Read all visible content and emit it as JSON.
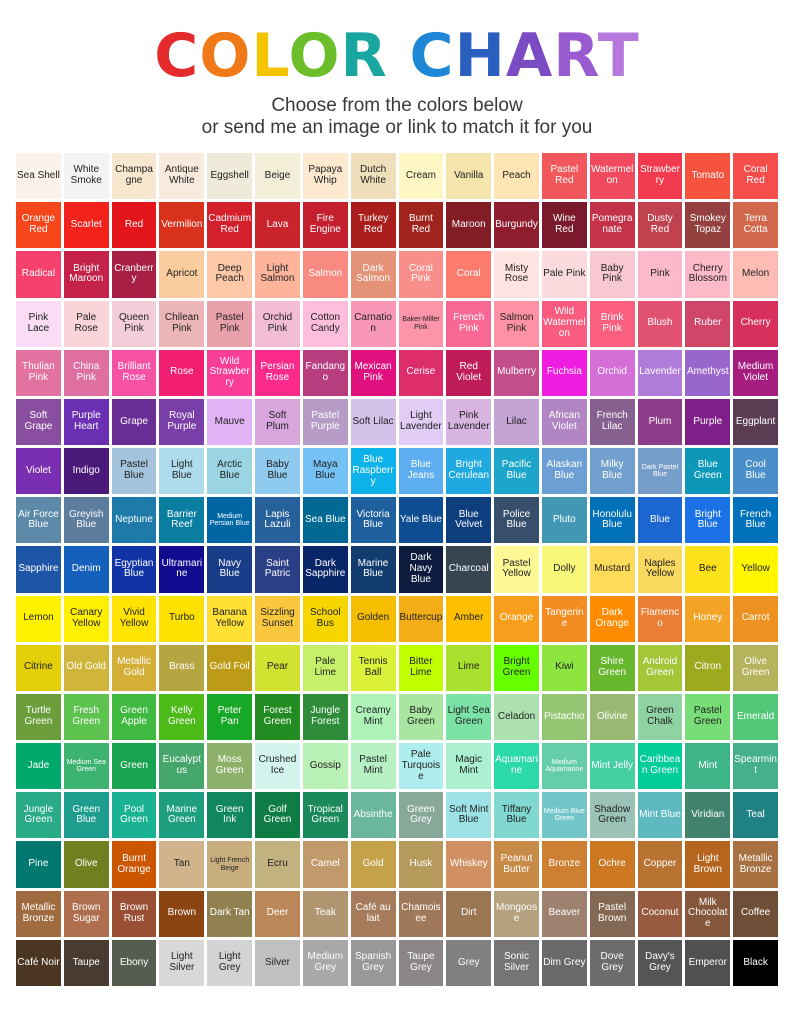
{
  "title": {
    "letters": [
      {
        "ch": "C",
        "color": "#e42b2b"
      },
      {
        "ch": "O",
        "color": "#f07a1a"
      },
      {
        "ch": "L",
        "color": "#f5c400"
      },
      {
        "ch": "O",
        "color": "#6cbf2b"
      },
      {
        "ch": "R",
        "color": "#1aa6a0"
      },
      {
        "ch": " ",
        "color": "#ffffff"
      },
      {
        "ch": "C",
        "color": "#1e88d6"
      },
      {
        "ch": "H",
        "color": "#2a5fbf"
      },
      {
        "ch": "A",
        "color": "#7a4bc2"
      },
      {
        "ch": "R",
        "color": "#9b5bd0"
      },
      {
        "ch": "T",
        "color": "#b678dd"
      }
    ]
  },
  "subtitle": {
    "line1": "Choose from the colors below",
    "line2": "or send me an image or link to match it for you"
  },
  "rows": [
    [
      [
        "Sea Shell",
        "#fbf3ea"
      ],
      [
        "White Smoke",
        "#f3f3f3"
      ],
      [
        "Champagne",
        "#f7e7ce"
      ],
      [
        "Antique White",
        "#f8eadc"
      ],
      [
        "Eggshell",
        "#f0eadb"
      ],
      [
        "Beige",
        "#f4efd9"
      ],
      [
        "Papaya Whip",
        "#fde9cf"
      ],
      [
        "Dutch White",
        "#efdfbb"
      ],
      [
        "Cream",
        "#fff8c4"
      ],
      [
        "Vanilla",
        "#f3e5ab"
      ],
      [
        "Peach",
        "#ffe5b4"
      ],
      [
        "Pastel Red",
        "#f1575b"
      ],
      [
        "Watermelon",
        "#f14a5f"
      ],
      [
        "Strawberry",
        "#f23a4e"
      ],
      [
        "Tomato",
        "#f6533f"
      ],
      [
        "Coral Red",
        "#f54c4c"
      ]
    ],
    [
      [
        "Orange Red",
        "#f6461c"
      ],
      [
        "Scarlet",
        "#f2221b"
      ],
      [
        "Red",
        "#e3151a"
      ],
      [
        "Vermilion",
        "#d9321c"
      ],
      [
        "Cadmium Red",
        "#d41f2c"
      ],
      [
        "Lava",
        "#c9232b"
      ],
      [
        "Fire Engine",
        "#c5202d"
      ],
      [
        "Turkey Red",
        "#a91d1d"
      ],
      [
        "Burnt Red",
        "#a0241d"
      ],
      [
        "Maroon",
        "#821d25"
      ],
      [
        "Burgundy",
        "#8e1d2d"
      ],
      [
        "Wine Red",
        "#7a1a2c"
      ],
      [
        "Pomegranate",
        "#c43349"
      ],
      [
        "Dusty Red",
        "#c0424f"
      ],
      [
        "Smokey Topaz",
        "#93403e"
      ],
      [
        "Terra Cotta",
        "#d2694d"
      ]
    ],
    [
      [
        "Radical",
        "#f5416c"
      ],
      [
        "Bright Maroon",
        "#c42249"
      ],
      [
        "Cranberry",
        "#a71f45"
      ],
      [
        "Apricot",
        "#fbcd9e"
      ],
      [
        "Deep Peach",
        "#fcc8a7"
      ],
      [
        "Light Salmon",
        "#fdb49b"
      ],
      [
        "Salmon",
        "#f98a82"
      ],
      [
        "Dark Salmon",
        "#e59378"
      ],
      [
        "Coral Pink",
        "#f98f8a"
      ],
      [
        "Coral",
        "#fb7b6d"
      ],
      [
        "Misty Rose",
        "#ffe4e1"
      ],
      [
        "Pale Pink",
        "#fadadd"
      ],
      [
        "Baby Pink",
        "#f8c8d2"
      ],
      [
        "Pink",
        "#fbb9cb"
      ],
      [
        "Cherry Blossom",
        "#fcb9c8"
      ],
      [
        "Melon",
        "#fdbcb4"
      ]
    ],
    [
      [
        "Pink Lace",
        "#fcdcf4"
      ],
      [
        "Pale Rose",
        "#f9d5da"
      ],
      [
        "Queen Pink",
        "#f3cdd8"
      ],
      [
        "Chilean Pink",
        "#ecb6b8"
      ],
      [
        "Pastel Pink",
        "#e8a0aa"
      ],
      [
        "Orchid Pink",
        "#f1bcd4"
      ],
      [
        "Cotton Candy",
        "#fdbedc"
      ],
      [
        "Carnation",
        "#f898b6"
      ],
      [
        "Baker-Miller Pink",
        "#fc95a9"
      ],
      [
        "French Pink",
        "#f86894"
      ],
      [
        "Salmon Pink",
        "#ff91a4"
      ],
      [
        "Wild Watermelon",
        "#f95c7f"
      ],
      [
        "Brink Pink",
        "#fa5f80"
      ],
      [
        "Blush",
        "#e0526f"
      ],
      [
        "Ruber",
        "#cf4669"
      ],
      [
        "Cherry",
        "#d8305d"
      ]
    ],
    [
      [
        "Thulian Pink",
        "#e2729f"
      ],
      [
        "China Pink",
        "#df6fa1"
      ],
      [
        "Brilliant Rose",
        "#f552a3"
      ],
      [
        "Rose",
        "#f21e72"
      ],
      [
        "Wild Strawberry",
        "#fa3d96"
      ],
      [
        "Persian Rose",
        "#fb2a8b"
      ],
      [
        "Fandango",
        "#b83d7f"
      ],
      [
        "Mexican Pink",
        "#e0117f"
      ],
      [
        "Cerise",
        "#dd2d6a"
      ],
      [
        "Red Violet",
        "#c01c5a"
      ],
      [
        "Mulberry",
        "#c24e8b"
      ],
      [
        "Fuchsia",
        "#ef1ddf"
      ],
      [
        "Orchid",
        "#d46fd8"
      ],
      [
        "Lavender",
        "#b17cd9"
      ],
      [
        "Amethyst",
        "#9966cc"
      ],
      [
        "Medium Violet",
        "#a61d7f"
      ]
    ],
    [
      [
        "Soft Grape",
        "#8a4ea0"
      ],
      [
        "Purple Heart",
        "#6a2fb2"
      ],
      [
        "Grape",
        "#6a2d96"
      ],
      [
        "Royal Purple",
        "#7a3ea8"
      ],
      [
        "Mauve",
        "#e1b3f4"
      ],
      [
        "Soft Plum",
        "#d8a6dd"
      ],
      [
        "Pastel Purple",
        "#b59bc6"
      ],
      [
        "Soft Lilac",
        "#d5c2ea"
      ],
      [
        "Light Lavender",
        "#e0ccf5"
      ],
      [
        "Pink Lavender",
        "#d8b4e0"
      ],
      [
        "Lilac",
        "#c3a3d4"
      ],
      [
        "African Violet",
        "#b085c2"
      ],
      [
        "French Lilac",
        "#86608e"
      ],
      [
        "Plum",
        "#8c3c88"
      ],
      [
        "Purple",
        "#7e2088"
      ],
      [
        "Eggplant",
        "#5b3c52"
      ]
    ],
    [
      [
        "Violet",
        "#7a2fb2"
      ],
      [
        "Indigo",
        "#4a1a7a"
      ],
      [
        "Pastel Blue",
        "#a3c4dc"
      ],
      [
        "Light Blue",
        "#aedced"
      ],
      [
        "Arctic Blue",
        "#9bd5e3"
      ],
      [
        "Baby Blue",
        "#8ecbef"
      ],
      [
        "Maya Blue",
        "#73c1f5"
      ],
      [
        "Blue Raspberry",
        "#0db2ea"
      ],
      [
        "Blue Jeans",
        "#5daef0"
      ],
      [
        "Bright Cerulean",
        "#1fa9e0"
      ],
      [
        "Pacific Blue",
        "#1ca6cc"
      ],
      [
        "Alaskan Blue",
        "#6c9fd4"
      ],
      [
        "Milky Blue",
        "#71a0cf"
      ],
      [
        "Dark Pastel Blue",
        "#779ecb"
      ],
      [
        "Blue Green",
        "#0d98ba"
      ],
      [
        "Cool Blue",
        "#4a8fc9"
      ]
    ],
    [
      [
        "Air Force Blue",
        "#5d8aa8"
      ],
      [
        "Greyish Blue",
        "#5c7d9e"
      ],
      [
        "Neptune",
        "#1e7aa8"
      ],
      [
        "Barrier Reef",
        "#0a7ea1"
      ],
      [
        "Medium Persian Blue",
        "#0067a5"
      ],
      [
        "Lapis Lazuli",
        "#26619c"
      ],
      [
        "Sea Blue",
        "#006994"
      ],
      [
        "Victoria Blue",
        "#1e5f9e"
      ],
      [
        "Yale Blue",
        "#0f4d92"
      ],
      [
        "Blue Velvet",
        "#0e3e7e"
      ],
      [
        "Police Blue",
        "#374f6b"
      ],
      [
        "Pluto",
        "#4298b2"
      ],
      [
        "Honolulu Blue",
        "#0070b8"
      ],
      [
        "Blue",
        "#1b66d0"
      ],
      [
        "Bright Blue",
        "#1a72e6"
      ],
      [
        "French Blue",
        "#0072bb"
      ]
    ],
    [
      [
        "Sapphire",
        "#1f55a6"
      ],
      [
        "Denim",
        "#1560bd"
      ],
      [
        "Egyptian Blue",
        "#1034a6"
      ],
      [
        "Ultramarine",
        "#120a8f"
      ],
      [
        "Navy Blue",
        "#1a3d8a"
      ],
      [
        "Saint Patric",
        "#2b3f87"
      ],
      [
        "Dark Sapphire",
        "#082567"
      ],
      [
        "Marine Blue",
        "#123c6d"
      ],
      [
        "Dark Navy Blue",
        "#0d1b3e"
      ],
      [
        "Charcoal",
        "#36454f"
      ],
      [
        "Pastel Yellow",
        "#fdf996"
      ],
      [
        "Dolly",
        "#f9f779"
      ],
      [
        "Mustard",
        "#ffdb58"
      ],
      [
        "Naples Yellow",
        "#fada5e"
      ],
      [
        "Bee",
        "#fde21b"
      ],
      [
        "Yellow",
        "#fff600"
      ]
    ],
    [
      [
        "Lemon",
        "#fff200"
      ],
      [
        "Canary Yellow",
        "#ffef00"
      ],
      [
        "Vivid Yellow",
        "#ffe302"
      ],
      [
        "Turbo",
        "#fde100"
      ],
      [
        "Banana Yellow",
        "#ffe135"
      ],
      [
        "Sizzling Sunset",
        "#f9c73e"
      ],
      [
        "School Bus",
        "#f7d600"
      ],
      [
        "Golden",
        "#f6be00"
      ],
      [
        "Buttercup",
        "#f3ad16"
      ],
      [
        "Amber",
        "#ffbf00"
      ],
      [
        "Orange",
        "#f99d1c"
      ],
      [
        "Tangerine",
        "#f48c21"
      ],
      [
        "Dark Orange",
        "#ff8c00"
      ],
      [
        "Flamenco",
        "#ea7e32"
      ],
      [
        "Honey",
        "#f3a325"
      ],
      [
        "Carrot",
        "#ed9121"
      ]
    ],
    [
      [
        "Citrine",
        "#e4d00a"
      ],
      [
        "Old Gold",
        "#cfb53b"
      ],
      [
        "Metallic Gold",
        "#d4af37"
      ],
      [
        "Brass",
        "#b5a642"
      ],
      [
        "Gold Foil",
        "#bd9b16"
      ],
      [
        "Pear",
        "#d1e231"
      ],
      [
        "Pale Lime",
        "#c7f06a"
      ],
      [
        "Tennis Ball",
        "#dcf13a"
      ],
      [
        "Bitter Lime",
        "#bfff00"
      ],
      [
        "Lime",
        "#a8e12d"
      ],
      [
        "Bright Green",
        "#66ff00"
      ],
      [
        "Kiwi",
        "#8ee53f"
      ],
      [
        "Shire Green",
        "#68b82e"
      ],
      [
        "Android Green",
        "#a4c639"
      ],
      [
        "Citron",
        "#9fa91f"
      ],
      [
        "Olive Green",
        "#b5b35c"
      ]
    ],
    [
      [
        "Turtle Green",
        "#6b9e3a"
      ],
      [
        "Fresh Green",
        "#5ec24e"
      ],
      [
        "Green Apple",
        "#40b940"
      ],
      [
        "Kelly Green",
        "#4cbb17"
      ],
      [
        "Peter Pan",
        "#18a827"
      ],
      [
        "Forest Green",
        "#228b22"
      ],
      [
        "Jungle Forest",
        "#2f8c3a"
      ],
      [
        "Creamy Mint",
        "#aef2b8"
      ],
      [
        "Baby Green",
        "#a8e6a1"
      ],
      [
        "Light Sea Green",
        "#7be1a5"
      ],
      [
        "Celadon",
        "#ace1af"
      ],
      [
        "Pistachio",
        "#93c572"
      ],
      [
        "Olivine",
        "#9ab973"
      ],
      [
        "Green Chalk",
        "#8fd3a3"
      ],
      [
        "Pastel Green",
        "#77dd77"
      ],
      [
        "Emerald",
        "#50c878"
      ]
    ],
    [
      [
        "Jade",
        "#00a86b"
      ],
      [
        "Medium Sea Green",
        "#3cb371"
      ],
      [
        "Green",
        "#18a350"
      ],
      [
        "Eucalyptus",
        "#44a66a"
      ],
      [
        "Moss Green",
        "#8db16a"
      ],
      [
        "Crushed Ice",
        "#d4f5ee"
      ],
      [
        "Gossip",
        "#b9f1b6"
      ],
      [
        "Pastel Mint",
        "#b8f2c4"
      ],
      [
        "Pale Turquoise",
        "#afeeee"
      ],
      [
        "Magic Mint",
        "#aaf0d1"
      ],
      [
        "Aquamarine",
        "#2bd9a9"
      ],
      [
        "Medium Aquamarine",
        "#66cdaa"
      ],
      [
        "Mint Jelly",
        "#45cea2"
      ],
      [
        "Caribbean Green",
        "#00cc99"
      ],
      [
        "Mint",
        "#3eb489"
      ],
      [
        "Spearmint",
        "#45b08c"
      ]
    ],
    [
      [
        "Jungle Green",
        "#29ab87"
      ],
      [
        "Green Blue",
        "#1d9d8e"
      ],
      [
        "Pool Green",
        "#19b394"
      ],
      [
        "Marine Green",
        "#1d9f7f"
      ],
      [
        "Green Ink",
        "#11875d"
      ],
      [
        "Golf Green",
        "#0f7c45"
      ],
      [
        "Tropical Green",
        "#1a8a5a"
      ],
      [
        "Absinthe",
        "#6ab79c"
      ],
      [
        "Green Grey",
        "#88a89a"
      ],
      [
        "Soft Mint Blue",
        "#9de2e4"
      ],
      [
        "Tiffany Blue",
        "#81d8d0"
      ],
      [
        "Medium Blue Green",
        "#72c6c9"
      ],
      [
        "Shadow Green",
        "#9ac2b6"
      ],
      [
        "Mint Blue",
        "#5fb9c1"
      ],
      [
        "Viridian",
        "#40826d"
      ],
      [
        "Teal",
        "#1f8184"
      ]
    ],
    [
      [
        "Pine",
        "#01796f"
      ],
      [
        "Olive",
        "#708020"
      ],
      [
        "Burnt Orange",
        "#cc5500"
      ],
      [
        "Tan",
        "#d2b48c"
      ],
      [
        "Light French Beige",
        "#c8ad7f"
      ],
      [
        "Ecru",
        "#c2b280"
      ],
      [
        "Camel",
        "#c19a6b"
      ],
      [
        "Gold",
        "#c5a14a"
      ],
      [
        "Husk",
        "#b69a5b"
      ],
      [
        "Whiskey",
        "#d29062"
      ],
      [
        "Peanut Butter",
        "#c88a47"
      ],
      [
        "Bronze",
        "#cd7f32"
      ],
      [
        "Ochre",
        "#cc7722"
      ],
      [
        "Copper",
        "#b87333"
      ],
      [
        "Light Brown",
        "#b5651d"
      ],
      [
        "Metallic Bronze",
        "#a97142"
      ]
    ],
    [
      [
        "Metallic Bronze",
        "#9f6b3f"
      ],
      [
        "Brown Sugar",
        "#af6e4d"
      ],
      [
        "Brown Rust",
        "#9a4f34"
      ],
      [
        "Brown",
        "#8b4513"
      ],
      [
        "Dark Tan",
        "#918151"
      ],
      [
        "Deer",
        "#ba8759"
      ],
      [
        "Teak",
        "#b19470"
      ],
      [
        "Café au lait",
        "#a67b5b"
      ],
      [
        "Chamoisee",
        "#a0785a"
      ],
      [
        "Dirt",
        "#9b7653"
      ],
      [
        "Mongoose",
        "#b5a07f"
      ],
      [
        "Beaver",
        "#9f8170"
      ],
      [
        "Pastel Brown",
        "#836953"
      ],
      [
        "Coconut",
        "#965a3e"
      ],
      [
        "Milk Chocolate",
        "#84563c"
      ],
      [
        "Coffee",
        "#6f4e37"
      ]
    ],
    [
      [
        "Café Noir",
        "#4b3621"
      ],
      [
        "Taupe",
        "#483c32"
      ],
      [
        "Ebony",
        "#555d50"
      ],
      [
        "Light Silver",
        "#d8d8d8"
      ],
      [
        "Light Grey",
        "#d3d3d3"
      ],
      [
        "Silver",
        "#c0c0c0"
      ],
      [
        "Medium Grey",
        "#a8a8a8"
      ],
      [
        "Spanish Grey",
        "#989898"
      ],
      [
        "Taupe Grey",
        "#8b8589"
      ],
      [
        "Grey",
        "#808080"
      ],
      [
        "Sonic Silver",
        "#757575"
      ],
      [
        "Dim Grey",
        "#696969"
      ],
      [
        "Dove Grey",
        "#6d6c6c"
      ],
      [
        "Davy's Grey",
        "#555555"
      ],
      [
        "Emperor",
        "#514f4f"
      ],
      [
        "Black",
        "#000000"
      ]
    ]
  ]
}
